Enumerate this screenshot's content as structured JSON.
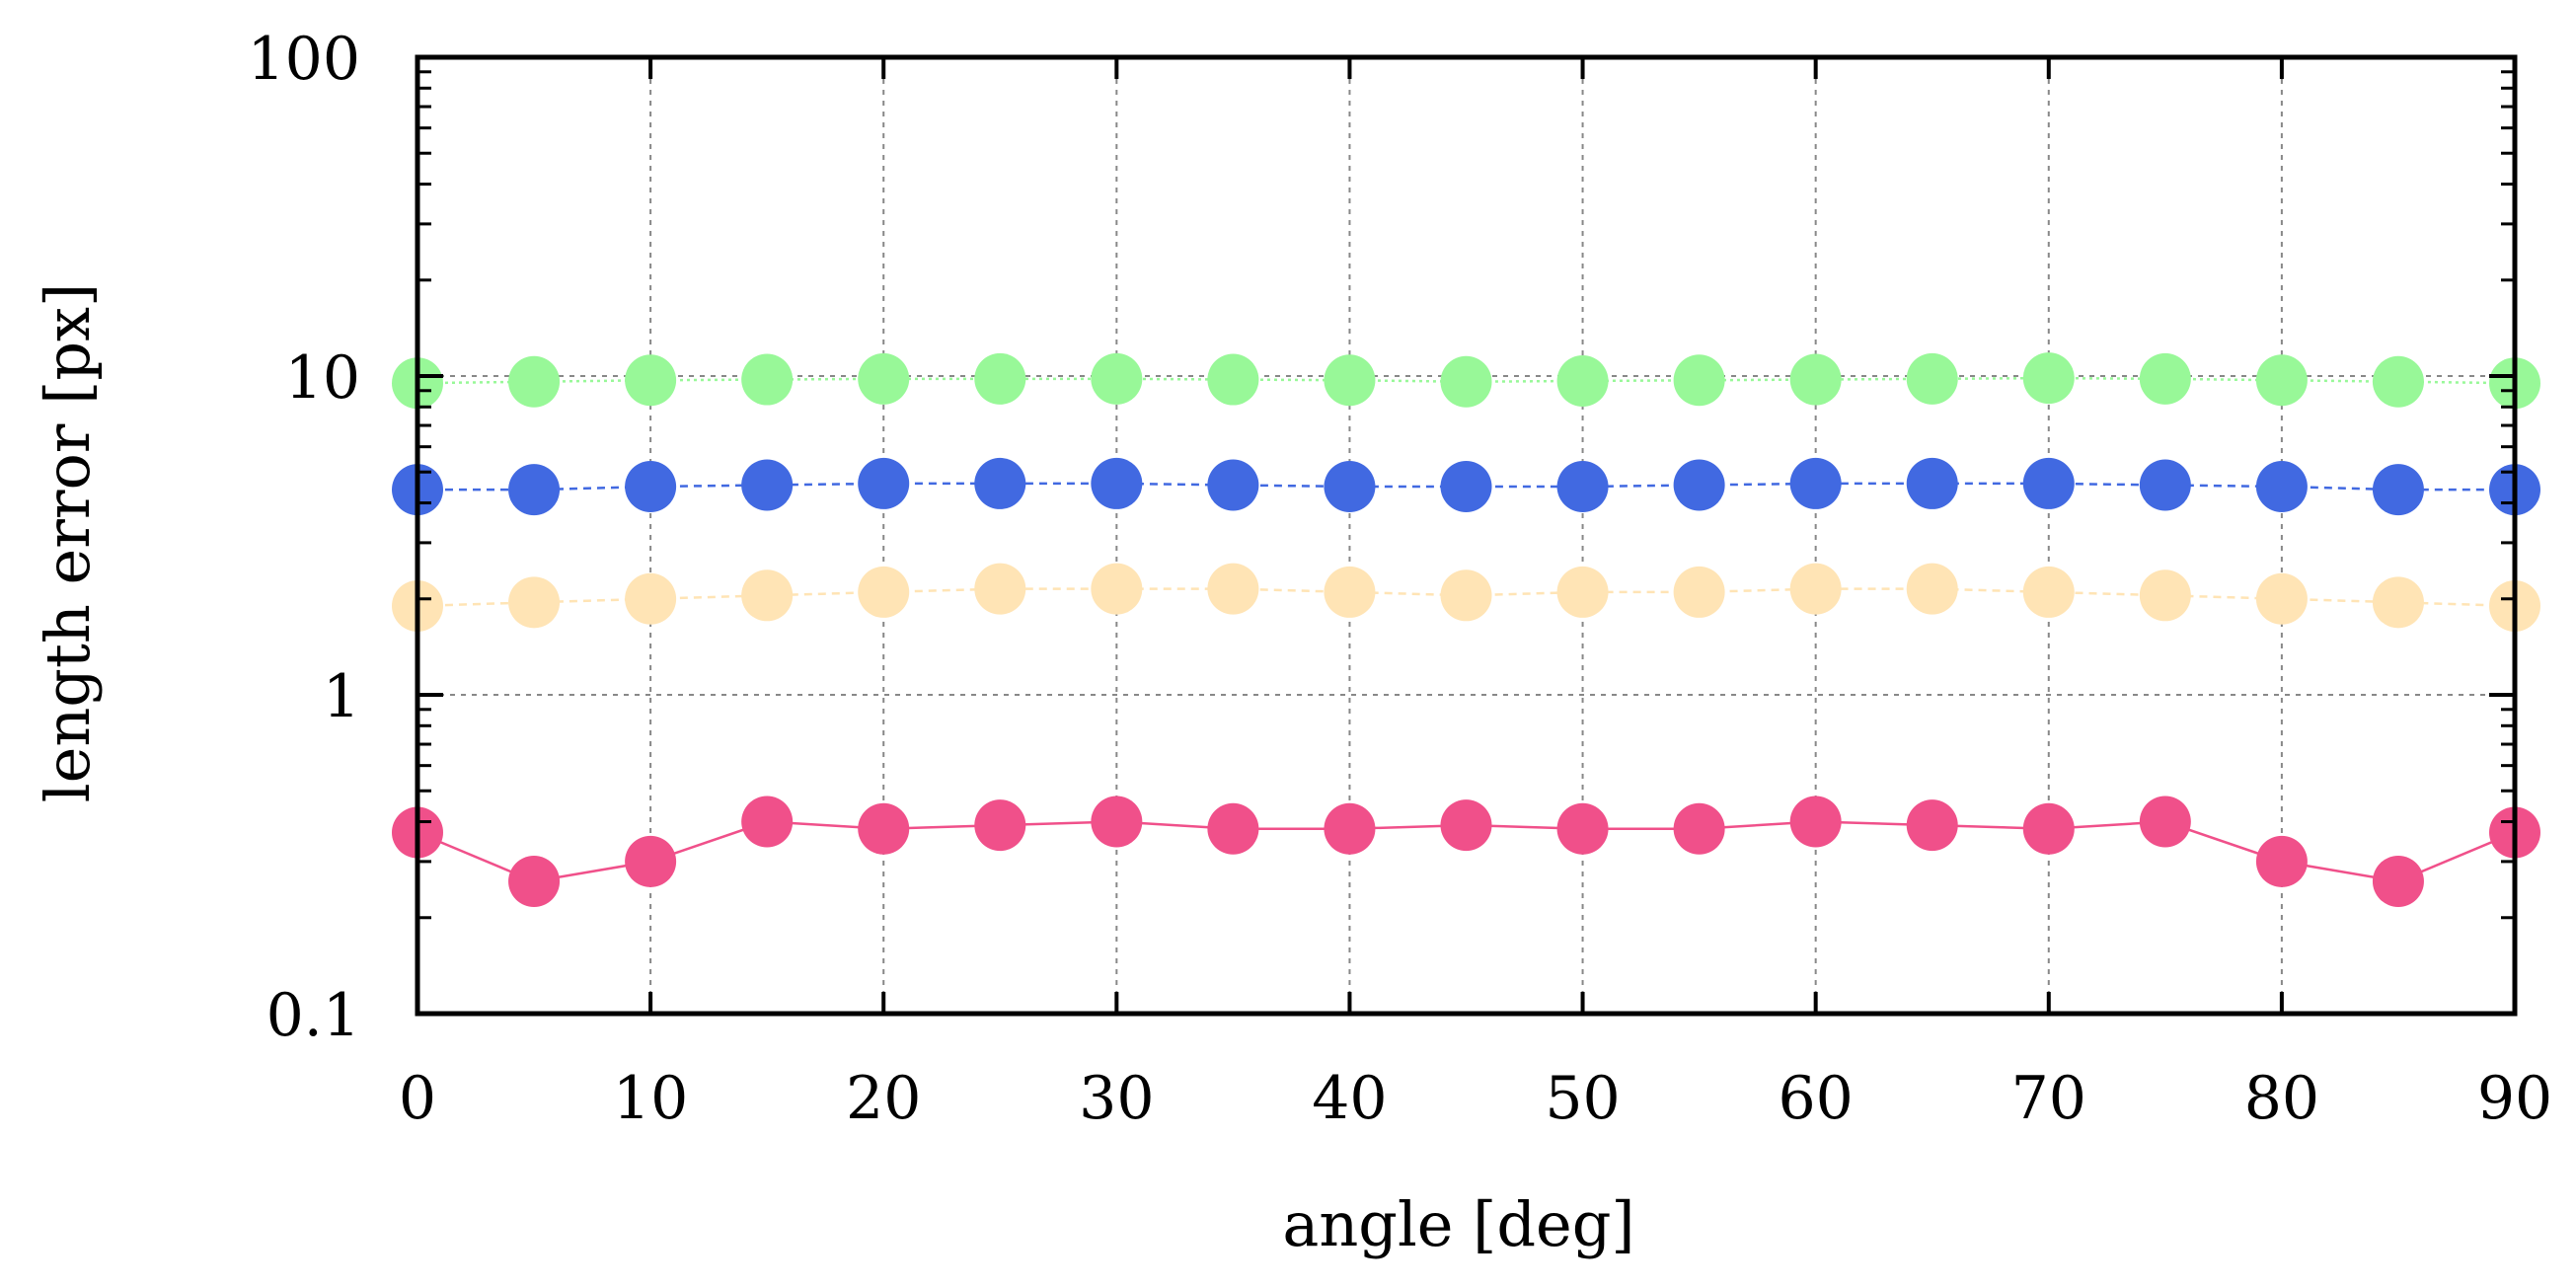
{
  "chart_data": {
    "type": "scatter",
    "title": "",
    "xlabel": "angle [deg]",
    "ylabel": "length error [px]",
    "xlim": [
      0,
      90
    ],
    "ylim": [
      0.1,
      100
    ],
    "yscale": "log",
    "grid": true,
    "legend": "",
    "xticks": [
      "0",
      "10",
      "20",
      "30",
      "40",
      "50",
      "60",
      "70",
      "80",
      "90"
    ],
    "yticks": [
      "0.1",
      "1",
      "10",
      "100"
    ],
    "x": [
      0,
      5,
      10,
      15,
      20,
      25,
      30,
      35,
      40,
      45,
      50,
      55,
      60,
      65,
      70,
      75,
      80,
      85,
      90
    ],
    "series": [
      {
        "name": "green",
        "color": "#98f898",
        "line": "dotted",
        "values": [
          9.5,
          9.6,
          9.7,
          9.75,
          9.8,
          9.8,
          9.8,
          9.75,
          9.7,
          9.6,
          9.65,
          9.7,
          9.75,
          9.8,
          9.85,
          9.8,
          9.7,
          9.6,
          9.5
        ]
      },
      {
        "name": "blue",
        "color": "#4169e1",
        "line": "dashed",
        "values": [
          4.4,
          4.4,
          4.5,
          4.55,
          4.6,
          4.6,
          4.6,
          4.55,
          4.5,
          4.5,
          4.5,
          4.55,
          4.6,
          4.6,
          4.6,
          4.55,
          4.5,
          4.4,
          4.4
        ]
      },
      {
        "name": "peach",
        "color": "#ffe4b5",
        "line": "dashed",
        "values": [
          1.9,
          1.95,
          2.0,
          2.05,
          2.1,
          2.15,
          2.15,
          2.15,
          2.1,
          2.05,
          2.1,
          2.1,
          2.15,
          2.15,
          2.1,
          2.05,
          2.0,
          1.95,
          1.9
        ]
      },
      {
        "name": "pink",
        "color": "#f0508a",
        "line": "solid",
        "values": [
          0.37,
          0.26,
          0.3,
          0.4,
          0.38,
          0.39,
          0.4,
          0.38,
          0.38,
          0.39,
          0.38,
          0.38,
          0.4,
          0.39,
          0.38,
          0.4,
          0.3,
          0.26,
          0.37
        ]
      }
    ]
  }
}
